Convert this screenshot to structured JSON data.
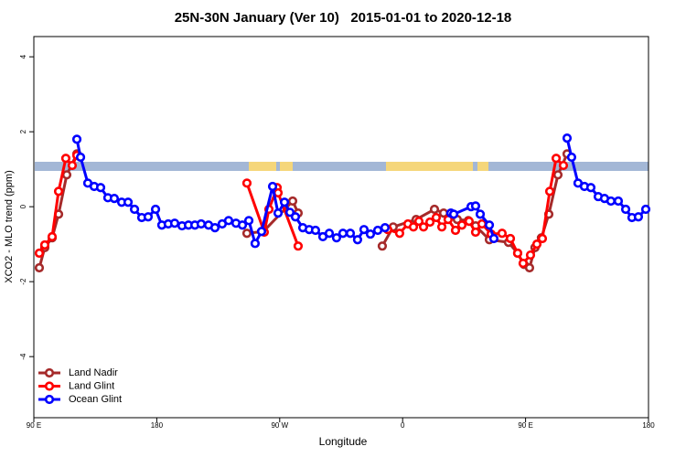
{
  "chart_data": {
    "type": "line",
    "title": "25N-30N January (Ver 10)   2015-01-01 to 2020-12-18",
    "x_label": "Longitude",
    "y_label": "XCO2 - MLO trend (ppm)",
    "xlim": [
      90,
      540
    ],
    "xticks": [
      {
        "value": 90,
        "label": "90 E"
      },
      180,
      {
        "value": 270,
        "label": "90 W"
      },
      {
        "value": 360,
        "label": "0"
      },
      {
        "value": 450,
        "label": "90 E"
      },
      {
        "value": 540,
        "label": "180"
      }
    ],
    "ylim": [
      -5.63,
      4.54
    ],
    "yticks": [
      4,
      2,
      0,
      -2,
      -4
    ],
    "legend": "bottom-left",
    "series": [
      {
        "name": "Land Nadir",
        "color": "#a52a2a",
        "x": [
          94.0,
          98.0,
          103.4,
          108.1,
          114.1,
          121.5,
          null,
          246.0,
          258.1,
          279.5,
          283.5,
          null,
          345.1,
          353.1,
          369.9,
          383.3,
          390.0,
          400.0,
          408.1,
          413.4,
          423.5,
          437.5,
          444.2,
          448.9,
          452.9,
          456.9,
          461.6,
          467.0,
          473.7,
          480.4
        ],
        "values": [
          -1.63,
          -1.09,
          -0.83,
          -0.2,
          0.85,
          1.41,
          null,
          -0.71,
          -0.66,
          0.15,
          -0.17,
          null,
          -1.05,
          -0.54,
          -0.34,
          -0.07,
          -0.17,
          -0.34,
          -0.37,
          -0.51,
          -0.88,
          -0.95,
          -1.24,
          -1.54,
          -1.63,
          -1.09,
          -0.83,
          -0.2,
          0.85,
          1.41
        ]
      },
      {
        "name": "Land Glint",
        "color": "#ff0000",
        "x": [
          94.0,
          98.0,
          103.4,
          108.1,
          113.4,
          118.1,
          121.5,
          null,
          246.0,
          258.7,
          262.1,
          268.1,
          268.8,
          283.5,
          null,
          349.1,
          357.8,
          363.9,
          367.9,
          371.9,
          375.3,
          380.0,
          384.6,
          388.7,
          393.3,
          398.7,
          403.4,
          408.7,
          413.4,
          418.1,
          424.8,
          432.8,
          438.9,
          444.2,
          448.2,
          453.6,
          458.3,
          462.3,
          467.7,
          472.4,
          477.7
        ],
        "values": [
          -1.24,
          -1.02,
          -0.8,
          0.41,
          1.29,
          1.1,
          1.37,
          null,
          0.63,
          -0.68,
          -0.07,
          0.51,
          0.37,
          -1.05,
          null,
          -0.61,
          -0.71,
          -0.46,
          -0.54,
          -0.39,
          -0.54,
          -0.41,
          -0.29,
          -0.54,
          -0.34,
          -0.63,
          -0.49,
          -0.39,
          -0.68,
          -0.46,
          -0.73,
          -0.71,
          -0.85,
          -1.24,
          -1.51,
          -1.29,
          -1.0,
          -0.85,
          0.41,
          1.29,
          1.1
        ]
      },
      {
        "name": "Ocean Glint",
        "color": "#0000ff",
        "x": [
          121.5,
          124.2,
          129.5,
          134.2,
          138.9,
          144.2,
          148.9,
          154.3,
          159.0,
          163.7,
          169.0,
          173.7,
          179.1,
          183.7,
          188.4,
          193.1,
          198.5,
          203.2,
          207.9,
          212.5,
          217.9,
          222.6,
          227.9,
          232.6,
          238.0,
          242.7,
          247.4,
          252.0,
          256.7,
          264.8,
          268.8,
          273.5,
          277.5,
          281.5,
          286.9,
          291.6,
          296.2,
          301.6,
          306.3,
          311.6,
          316.3,
          321.7,
          327.0,
          331.7,
          336.4,
          341.8,
          347.1,
          null,
          395.3,
          397.4,
          410.1,
          413.4,
          416.8,
          423.5,
          426.8,
          null,
          480.4,
          483.7,
          488.4,
          493.1,
          497.8,
          503.2,
          507.8,
          512.5,
          517.9,
          523.3,
          527.9,
          532.6,
          538.0
        ],
        "values": [
          1.8,
          1.32,
          0.63,
          0.54,
          0.51,
          0.24,
          0.22,
          0.12,
          0.12,
          -0.07,
          -0.29,
          -0.27,
          -0.07,
          -0.49,
          -0.46,
          -0.44,
          -0.51,
          -0.49,
          -0.49,
          -0.46,
          -0.49,
          -0.56,
          -0.46,
          -0.37,
          -0.44,
          -0.49,
          -0.37,
          -0.98,
          -0.66,
          0.54,
          -0.17,
          0.12,
          -0.15,
          -0.27,
          -0.56,
          -0.61,
          -0.63,
          -0.8,
          -0.71,
          -0.83,
          -0.71,
          -0.71,
          -0.88,
          -0.61,
          -0.73,
          -0.63,
          -0.56,
          null,
          -0.17,
          -0.2,
          0.0,
          0.02,
          -0.2,
          -0.49,
          -0.85,
          null,
          1.83,
          1.32,
          0.63,
          0.54,
          0.51,
          0.27,
          0.22,
          0.15,
          0.15,
          -0.07,
          -0.29,
          -0.27,
          -0.07
        ]
      }
    ]
  }
}
